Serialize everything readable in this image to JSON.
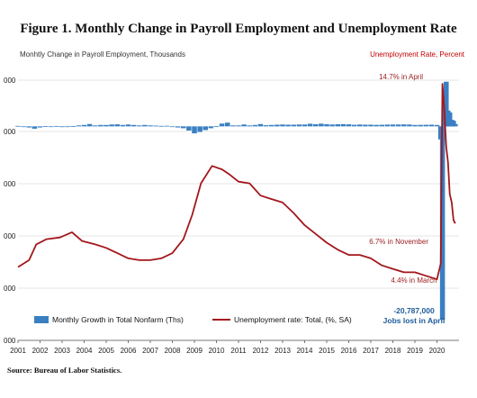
{
  "chart_data": {
    "type": "bar",
    "title": "Figure 1. Monthly Change in Payroll Employment and Unemployment Rate",
    "left_axis_label": "Monhtly Change in Payroll Employment, Thousands",
    "right_axis_label": "Unemployment Rate, Percent",
    "x_tick_labels": [
      "2001",
      "2002",
      "2003",
      "2004",
      "2005",
      "2006",
      "2007",
      "2008",
      "2009",
      "2010",
      "2011",
      "2012",
      "2013",
      "2014",
      "2015",
      "2016",
      "2017",
      "2018",
      "2019",
      "2020"
    ],
    "left_tick_labels": [
      "000",
      "000",
      "000",
      "000",
      "000",
      "000"
    ],
    "xlim": [
      2001,
      2021
    ],
    "ylim_left": [
      -23000,
      7000
    ],
    "ylim_right": [
      0,
      16
    ],
    "series": [
      {
        "name": "Monthly Growth in Total Nonfarm (Ths)",
        "type": "bar",
        "color": "#3a7fc1",
        "points": [
          [
            2001.0,
            50
          ],
          [
            2001.25,
            -50
          ],
          [
            2001.5,
            -120
          ],
          [
            2001.75,
            -250
          ],
          [
            2002.0,
            -120
          ],
          [
            2002.25,
            20
          ],
          [
            2002.5,
            0
          ],
          [
            2002.75,
            40
          ],
          [
            2003.0,
            -80
          ],
          [
            2003.25,
            -30
          ],
          [
            2003.5,
            20
          ],
          [
            2003.75,
            100
          ],
          [
            2004.0,
            150
          ],
          [
            2004.25,
            250
          ],
          [
            2004.5,
            100
          ],
          [
            2004.75,
            150
          ],
          [
            2005.0,
            150
          ],
          [
            2005.25,
            200
          ],
          [
            2005.5,
            220
          ],
          [
            2005.75,
            150
          ],
          [
            2006.0,
            200
          ],
          [
            2006.25,
            150
          ],
          [
            2006.5,
            100
          ],
          [
            2006.75,
            150
          ],
          [
            2007.0,
            100
          ],
          [
            2007.25,
            80
          ],
          [
            2007.5,
            50
          ],
          [
            2007.75,
            60
          ],
          [
            2008.0,
            -40
          ],
          [
            2008.25,
            -120
          ],
          [
            2008.5,
            -200
          ],
          [
            2008.75,
            -450
          ],
          [
            2009.0,
            -750
          ],
          [
            2009.25,
            -600
          ],
          [
            2009.5,
            -400
          ],
          [
            2009.75,
            -200
          ],
          [
            2010.0,
            20
          ],
          [
            2010.25,
            300
          ],
          [
            2010.5,
            400
          ],
          [
            2010.75,
            100
          ],
          [
            2011.0,
            100
          ],
          [
            2011.25,
            200
          ],
          [
            2011.5,
            100
          ],
          [
            2011.75,
            150
          ],
          [
            2012.0,
            250
          ],
          [
            2012.25,
            120
          ],
          [
            2012.5,
            150
          ],
          [
            2012.75,
            180
          ],
          [
            2013.0,
            200
          ],
          [
            2013.25,
            180
          ],
          [
            2013.5,
            180
          ],
          [
            2013.75,
            200
          ],
          [
            2014.0,
            200
          ],
          [
            2014.25,
            280
          ],
          [
            2014.5,
            230
          ],
          [
            2014.75,
            290
          ],
          [
            2015.0,
            230
          ],
          [
            2015.25,
            200
          ],
          [
            2015.5,
            230
          ],
          [
            2015.75,
            240
          ],
          [
            2016.0,
            220
          ],
          [
            2016.25,
            170
          ],
          [
            2016.5,
            200
          ],
          [
            2016.75,
            180
          ],
          [
            2017.0,
            180
          ],
          [
            2017.25,
            160
          ],
          [
            2017.5,
            170
          ],
          [
            2017.75,
            190
          ],
          [
            2018.0,
            200
          ],
          [
            2018.25,
            200
          ],
          [
            2018.5,
            210
          ],
          [
            2018.75,
            200
          ],
          [
            2019.0,
            150
          ],
          [
            2019.25,
            160
          ],
          [
            2019.5,
            170
          ],
          [
            2019.75,
            180
          ],
          [
            2020.0,
            150
          ],
          [
            2020.17,
            -1400
          ],
          [
            2020.25,
            -20787
          ],
          [
            2020.33,
            2700
          ],
          [
            2020.42,
            4800
          ],
          [
            2020.5,
            1700
          ],
          [
            2020.58,
            1500
          ],
          [
            2020.67,
            700
          ],
          [
            2020.75,
            600
          ],
          [
            2020.83,
            250
          ]
        ]
      },
      {
        "name": "Unemployment rate: Total, (%, SA)",
        "type": "line",
        "color": "#a3171c",
        "points": [
          [
            2001.0,
            4.2
          ],
          [
            2001.5,
            4.6
          ],
          [
            2001.83,
            5.5
          ],
          [
            2002.3,
            5.8
          ],
          [
            2002.9,
            5.9
          ],
          [
            2003.45,
            6.2
          ],
          [
            2003.9,
            5.7
          ],
          [
            2004.5,
            5.5
          ],
          [
            2005.0,
            5.3
          ],
          [
            2005.5,
            5.0
          ],
          [
            2006.0,
            4.7
          ],
          [
            2006.5,
            4.6
          ],
          [
            2007.0,
            4.6
          ],
          [
            2007.5,
            4.7
          ],
          [
            2008.0,
            5.0
          ],
          [
            2008.5,
            5.8
          ],
          [
            2008.9,
            7.2
          ],
          [
            2009.3,
            9.0
          ],
          [
            2009.8,
            10.0
          ],
          [
            2010.25,
            9.8
          ],
          [
            2010.6,
            9.5
          ],
          [
            2011.0,
            9.1
          ],
          [
            2011.5,
            9.0
          ],
          [
            2012.0,
            8.3
          ],
          [
            2012.5,
            8.1
          ],
          [
            2013.0,
            7.9
          ],
          [
            2013.5,
            7.3
          ],
          [
            2014.0,
            6.6
          ],
          [
            2014.5,
            6.1
          ],
          [
            2015.0,
            5.6
          ],
          [
            2015.5,
            5.2
          ],
          [
            2016.0,
            4.9
          ],
          [
            2016.5,
            4.9
          ],
          [
            2017.0,
            4.7
          ],
          [
            2017.5,
            4.3
          ],
          [
            2018.0,
            4.1
          ],
          [
            2018.5,
            3.9
          ],
          [
            2019.0,
            3.9
          ],
          [
            2019.5,
            3.7
          ],
          [
            2020.0,
            3.5
          ],
          [
            2020.17,
            4.4
          ],
          [
            2020.25,
            14.7
          ],
          [
            2020.33,
            13.3
          ],
          [
            2020.42,
            11.1
          ],
          [
            2020.5,
            10.2
          ],
          [
            2020.58,
            8.4
          ],
          [
            2020.67,
            7.9
          ],
          [
            2020.75,
            6.9
          ],
          [
            2020.83,
            6.7
          ]
        ]
      }
    ],
    "annotations": {
      "april_peak": "14.7% in April",
      "november": "6.7% in November",
      "march": "4.4% in March",
      "jobs_lost_value": "-20,787,000",
      "jobs_lost_label": "Jobs lost in April"
    },
    "legend": {
      "placement": "bottom-left",
      "bar_label": "Monthly Growth in Total Nonfarm (Ths)",
      "line_label": "Unemployment rate: Total, (%, SA)"
    },
    "grid": {
      "vertical": false,
      "horizontal": true
    },
    "source": "Source: Bureau of Labor Statistics."
  }
}
